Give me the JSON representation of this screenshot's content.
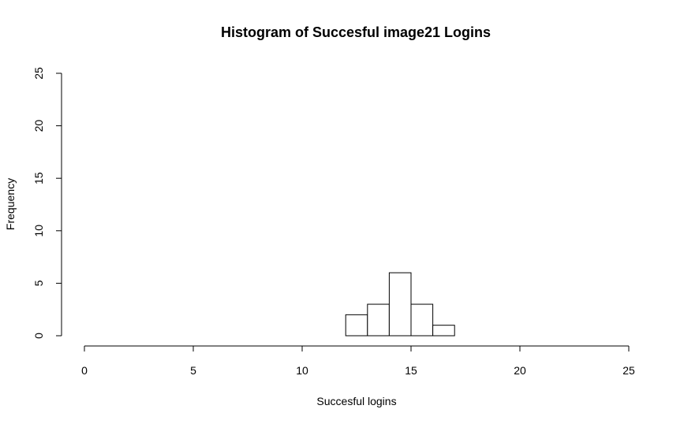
{
  "chart_data": {
    "type": "bar",
    "title": "Histogram of Succesful image21 Logins",
    "xlabel": "Succesful logins",
    "ylabel": "Frequency",
    "xlim": [
      0,
      25
    ],
    "ylim": [
      0,
      25
    ],
    "x_ticks": [
      0,
      5,
      10,
      15,
      20,
      25
    ],
    "y_ticks": [
      0,
      5,
      10,
      15,
      20,
      25
    ],
    "bins": [
      {
        "start": 12,
        "end": 13,
        "count": 2
      },
      {
        "start": 13,
        "end": 14,
        "count": 3
      },
      {
        "start": 14,
        "end": 15,
        "count": 6
      },
      {
        "start": 15,
        "end": 16,
        "count": 3
      },
      {
        "start": 16,
        "end": 17,
        "count": 1
      }
    ],
    "grid": false,
    "legend": "none",
    "colors": {
      "bar_fill": "#ffffff",
      "bar_stroke": "#000000",
      "axis": "#000000"
    }
  }
}
